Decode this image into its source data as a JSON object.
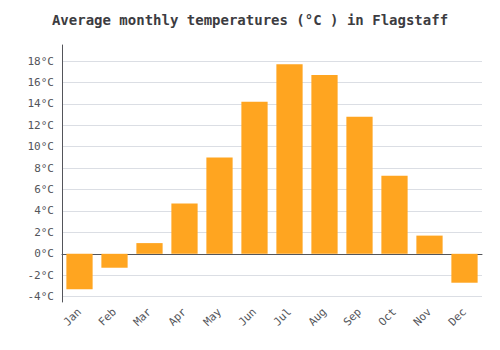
{
  "chart_data": {
    "type": "bar",
    "title": "Average monthly temperatures (°C ) in Flagstaff",
    "categories": [
      "Jan",
      "Feb",
      "Mar",
      "Apr",
      "May",
      "Jun",
      "Jul",
      "Aug",
      "Sep",
      "Oct",
      "Nov",
      "Dec"
    ],
    "values": [
      -3.3,
      -1.3,
      1.0,
      4.7,
      9.0,
      14.2,
      17.7,
      16.7,
      12.8,
      7.3,
      1.7,
      -2.7
    ],
    "color": "#FFA520",
    "ylim": [
      -4.5,
      19.5
    ],
    "yticks": [
      {
        "value": -4,
        "label": "-4°C"
      },
      {
        "value": -2,
        "label": "-2°C"
      },
      {
        "value": 0,
        "label": "0°C"
      },
      {
        "value": 2,
        "label": "2°C"
      },
      {
        "value": 4,
        "label": "4°C"
      },
      {
        "value": 6,
        "label": "6°C"
      },
      {
        "value": 8,
        "label": "8°C"
      },
      {
        "value": 10,
        "label": "10°C"
      },
      {
        "value": 12,
        "label": "12°C"
      },
      {
        "value": 14,
        "label": "14°C"
      },
      {
        "value": 16,
        "label": "16°C"
      },
      {
        "value": 18,
        "label": "18°C"
      }
    ],
    "grid": true
  }
}
